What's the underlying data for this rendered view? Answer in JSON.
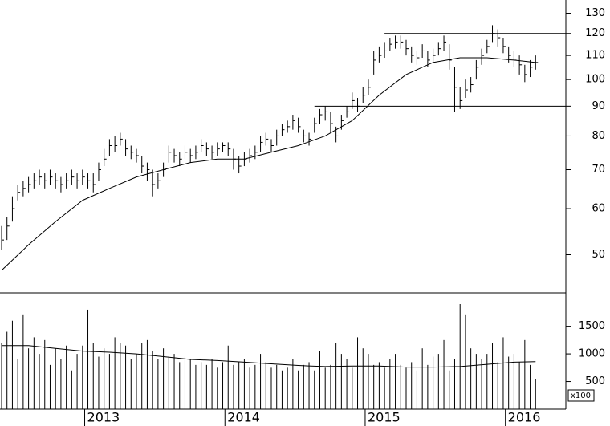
{
  "chart_data": [
    {
      "type": "ohlc",
      "log": true,
      "color": "#000000",
      "categories": [
        null,
        null,
        null,
        null,
        null,
        null,
        null,
        null,
        null,
        null,
        null,
        null,
        null,
        null,
        null,
        null,
        "2013",
        null,
        null,
        null,
        null,
        null,
        null,
        null,
        null,
        null,
        null,
        null,
        null,
        null,
        null,
        null,
        null,
        null,
        null,
        null,
        null,
        null,
        null,
        null,
        null,
        null,
        "2014",
        null,
        null,
        null,
        null,
        null,
        null,
        null,
        null,
        null,
        null,
        null,
        null,
        null,
        null,
        null,
        null,
        null,
        null,
        null,
        null,
        null,
        null,
        null,
        null,
        null,
        "2015",
        null,
        null,
        null,
        null,
        null,
        null,
        null,
        null,
        null,
        null,
        null,
        null,
        null,
        null,
        null,
        null,
        null,
        null,
        null,
        null,
        null,
        null,
        null,
        null,
        null,
        "2016",
        null,
        null,
        null,
        null,
        null
      ],
      "close": [
        53,
        56,
        60,
        64,
        65,
        66,
        67,
        68,
        67,
        68,
        67,
        66,
        67,
        68,
        67,
        68,
        67,
        66,
        70,
        73,
        77,
        77,
        79,
        76,
        75,
        74,
        71,
        70,
        66,
        67,
        70,
        75,
        74,
        73,
        75,
        74,
        75,
        77,
        76,
        75,
        76,
        77,
        76,
        73,
        71,
        73,
        74,
        75,
        78,
        79,
        77,
        80,
        82,
        83,
        85,
        83,
        80,
        79,
        84,
        87,
        88,
        84,
        80,
        85,
        88,
        92,
        90,
        94,
        97,
        108,
        110,
        112,
        115,
        116,
        116,
        113,
        110,
        109,
        112,
        108,
        110,
        113,
        116,
        108,
        97,
        92,
        96,
        98,
        105,
        110,
        114,
        120,
        118,
        114,
        110,
        108,
        106,
        102,
        105,
        107
      ],
      "high": [
        56,
        58,
        63,
        66,
        67,
        68,
        69,
        70,
        69,
        70,
        69,
        68,
        69,
        70,
        69,
        70,
        69,
        69,
        72,
        76,
        79,
        80,
        81,
        79,
        77,
        76,
        74,
        72,
        70,
        69,
        72,
        77,
        76,
        75,
        77,
        76,
        77,
        79,
        78,
        77,
        78,
        78,
        78,
        76,
        74,
        75,
        76,
        77,
        80,
        81,
        79,
        82,
        84,
        85,
        87,
        86,
        82,
        81,
        86,
        89,
        90,
        88,
        83,
        87,
        90,
        95,
        93,
        97,
        100,
        112,
        114,
        116,
        118,
        119,
        119,
        117,
        114,
        112,
        115,
        112,
        113,
        116,
        119,
        115,
        105,
        97,
        100,
        101,
        108,
        113,
        117,
        124,
        122,
        118,
        114,
        112,
        110,
        106,
        108,
        110
      ],
      "low": [
        51,
        53,
        57,
        62,
        63,
        64,
        65,
        66,
        65,
        66,
        65,
        64,
        65,
        66,
        65,
        66,
        65,
        64,
        67,
        71,
        74,
        75,
        77,
        74,
        73,
        72,
        69,
        67,
        63,
        65,
        68,
        72,
        72,
        71,
        73,
        72,
        73,
        75,
        74,
        73,
        74,
        75,
        74,
        70,
        69,
        71,
        72,
        73,
        75,
        77,
        75,
        77,
        80,
        81,
        82,
        81,
        78,
        77,
        81,
        84,
        85,
        81,
        78,
        82,
        86,
        89,
        88,
        91,
        94,
        102,
        107,
        109,
        112,
        113,
        113,
        110,
        107,
        106,
        109,
        105,
        107,
        110,
        112,
        104,
        88,
        89,
        93,
        95,
        100,
        106,
        111,
        116,
        114,
        111,
        107,
        105,
        102,
        99,
        101,
        104
      ],
      "ma": {
        "x": [
          0,
          5,
          10,
          15,
          20,
          25,
          30,
          35,
          40,
          45,
          50,
          55,
          60,
          65,
          70,
          75,
          80,
          85,
          90,
          95,
          99
        ],
        "values": [
          47,
          52,
          57,
          62,
          65,
          68,
          70,
          72,
          73,
          73,
          75,
          77,
          80,
          85,
          94,
          102,
          107,
          109,
          109,
          108,
          107
        ]
      },
      "lines": [
        {
          "value": 120,
          "start": 71
        },
        {
          "value": 90,
          "start": 58
        }
      ],
      "ylim": [
        43,
        137
      ],
      "yticks": [
        50,
        60,
        70,
        80,
        90,
        100,
        110,
        120,
        130
      ]
    },
    {
      "type": "bar",
      "color": "#000000",
      "values": [
        1200,
        1400,
        1600,
        900,
        1700,
        1100,
        1300,
        1000,
        1250,
        800,
        1100,
        900,
        1150,
        700,
        1000,
        1150,
        1800,
        1200,
        950,
        1100,
        1000,
        1300,
        1200,
        1150,
        900,
        1000,
        1200,
        1250,
        1050,
        900,
        1100,
        950,
        1000,
        850,
        950,
        900,
        800,
        850,
        800,
        900,
        750,
        850,
        1150,
        800,
        850,
        900,
        750,
        800,
        1000,
        850,
        750,
        800,
        700,
        750,
        900,
        700,
        800,
        850,
        700,
        1050,
        750,
        800,
        1200,
        1000,
        900,
        750,
        1300,
        1100,
        1000,
        800,
        850,
        750,
        900,
        1000,
        800,
        750,
        850,
        700,
        1100,
        800,
        950,
        1000,
        1250,
        700,
        900,
        1900,
        1700,
        1100,
        1000,
        900,
        1000,
        1200,
        850,
        1300,
        950,
        1000,
        850,
        1250,
        800,
        550
      ],
      "ma": {
        "x": [
          0,
          5,
          10,
          15,
          20,
          25,
          30,
          35,
          40,
          45,
          50,
          55,
          60,
          65,
          70,
          75,
          80,
          85,
          90,
          95,
          99
        ],
        "values": [
          1150,
          1150,
          1100,
          1050,
          1030,
          1000,
          950,
          900,
          880,
          850,
          820,
          790,
          770,
          780,
          780,
          760,
          760,
          770,
          810,
          850,
          860
        ]
      },
      "unit_label": "x100",
      "ylim": [
        0,
        2075
      ],
      "yticks": [
        500,
        1000,
        1500
      ]
    }
  ]
}
